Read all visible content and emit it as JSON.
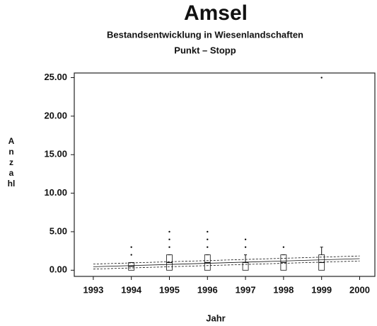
{
  "chart_data": {
    "type": "box",
    "title": "Amsel",
    "subtitle": "Bestandsentwicklung in Wiesenlandschaften",
    "subtitle2": "Punkt – Stopp",
    "y_label": "Anzahl",
    "x_label": "Jahr",
    "xlim": [
      1992.5,
      2000.4
    ],
    "xticks": [
      1993,
      1994,
      1995,
      1996,
      1997,
      1998,
      1999,
      2000
    ],
    "ylim": [
      -0.8,
      25.6
    ],
    "yticks": [
      {
        "value": 0,
        "label": "0.00"
      },
      {
        "value": 5,
        "label": "5.00"
      },
      {
        "value": 10,
        "label": "10.00"
      },
      {
        "value": 15,
        "label": "15.00"
      },
      {
        "value": 20,
        "label": "20.00"
      },
      {
        "value": 25,
        "label": "25.00"
      }
    ],
    "color": "#111111",
    "boxes": [
      {
        "x": 1994,
        "low": 0,
        "q1": 0,
        "median": 0.5,
        "q3": 1,
        "high": 1,
        "outliers": [
          2,
          3
        ]
      },
      {
        "x": 1995,
        "low": 0,
        "q1": 0,
        "median": 1,
        "q3": 2,
        "high": 2,
        "outliers": [
          3,
          4,
          5
        ]
      },
      {
        "x": 1996,
        "low": 0,
        "q1": 0,
        "median": 1,
        "q3": 2,
        "high": 2,
        "outliers": [
          3,
          4,
          5
        ]
      },
      {
        "x": 1997,
        "low": 0,
        "q1": 0,
        "median": 1,
        "q3": 1,
        "high": 2,
        "outliers": [
          3,
          4
        ]
      },
      {
        "x": 1998,
        "low": 0,
        "q1": 0,
        "median": 1,
        "q3": 2,
        "high": 2,
        "outliers": [
          3
        ]
      },
      {
        "x": 1999,
        "low": 0,
        "q1": 0,
        "median": 1,
        "q3": 2,
        "high": 3,
        "outliers": [
          25
        ]
      }
    ],
    "trend": {
      "x": [
        1993,
        2000
      ],
      "values": [
        0.45,
        1.5
      ]
    },
    "lower": {
      "x": [
        1993,
        2000
      ],
      "values": [
        0.15,
        1.2
      ]
    },
    "upper": {
      "x": [
        1993,
        2000
      ],
      "values": [
        0.8,
        1.85
      ]
    }
  }
}
